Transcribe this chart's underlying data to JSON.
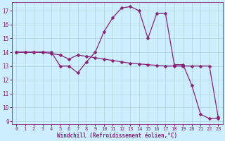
{
  "xlabel": "Windchill (Refroidissement éolien,°C)",
  "bg_color": "#cceeff",
  "grid_color": "#aacccc",
  "line_color": "#882277",
  "x_data": [
    0,
    1,
    2,
    3,
    4,
    5,
    6,
    7,
    8,
    9,
    10,
    11,
    12,
    13,
    14,
    15,
    16,
    17,
    18,
    19,
    20,
    21,
    22,
    23
  ],
  "y_line1": [
    14,
    14,
    14,
    14,
    14,
    13,
    13,
    12.5,
    13.3,
    14.0,
    15.5,
    16.5,
    17.2,
    17.3,
    17.0,
    15.0,
    16.8,
    16.8,
    13.1,
    13.1,
    11.6,
    9.5,
    9.2,
    9.2
  ],
  "y_line2": [
    14,
    14,
    14,
    14,
    13.9,
    13.8,
    13.5,
    13.8,
    13.7,
    13.6,
    13.5,
    13.4,
    13.3,
    13.2,
    13.15,
    13.1,
    13.05,
    13.0,
    13.0,
    13.0,
    13.0,
    13.0,
    13.0,
    9.3
  ],
  "xlim": [
    -0.5,
    23.5
  ],
  "ylim": [
    8.8,
    17.6
  ],
  "yticks": [
    9,
    10,
    11,
    12,
    13,
    14,
    15,
    16,
    17
  ],
  "xticks": [
    0,
    1,
    2,
    3,
    4,
    5,
    6,
    7,
    8,
    9,
    10,
    11,
    12,
    13,
    14,
    15,
    16,
    17,
    18,
    19,
    20,
    21,
    22,
    23
  ],
  "markersize": 2.5,
  "linewidth": 0.9,
  "tick_fontsize": 5.0,
  "xlabel_fontsize": 5.5
}
